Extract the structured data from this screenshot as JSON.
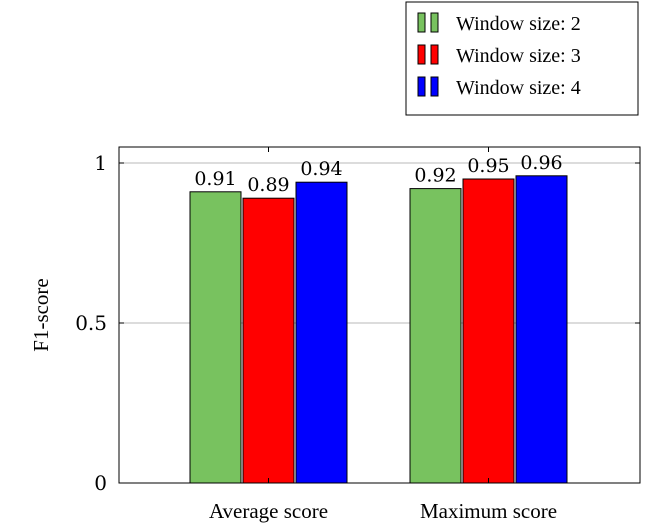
{
  "chart_data": {
    "type": "bar",
    "categories": [
      "Average score",
      "Maximum score"
    ],
    "series": [
      {
        "name": "Window size: 2",
        "color": "#78c25f",
        "values": [
          0.91,
          0.92
        ],
        "labels": [
          "0.91",
          "0.92"
        ]
      },
      {
        "name": "Window size: 3",
        "color": "#ff0000",
        "values": [
          0.89,
          0.95
        ],
        "labels": [
          "0.89",
          "0.95"
        ]
      },
      {
        "name": "Window size: 4",
        "color": "#0000ff",
        "values": [
          0.94,
          0.96
        ],
        "labels": [
          "0.94",
          "0.96"
        ]
      }
    ],
    "title": "",
    "xlabel": "",
    "ylabel": "F1-score",
    "ylim": [
      0,
      1.05
    ],
    "yticks": [
      0,
      0.5,
      1
    ],
    "ytick_labels": [
      "0",
      "0.5",
      "1"
    ],
    "grid": "horizontal",
    "legend_position": "top-right"
  }
}
